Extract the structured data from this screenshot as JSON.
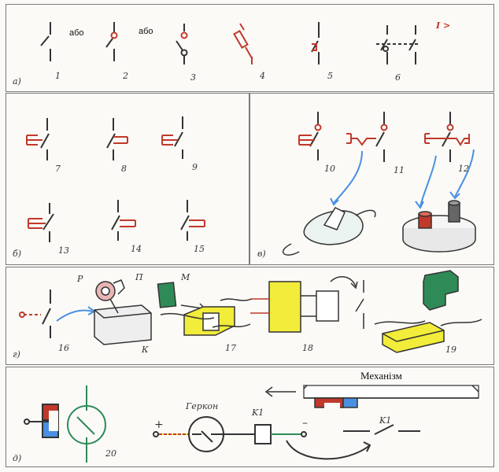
{
  "sections": {
    "a": "а)",
    "b": "б)",
    "v": "в)",
    "g": "г)",
    "d": "д)"
  },
  "or_word": "або",
  "numbers": {
    "n1": "1",
    "n2": "2",
    "n3": "3",
    "n4": "4",
    "n5": "5",
    "n6": "6",
    "n7": "7",
    "n8": "8",
    "n9": "9",
    "n10": "10",
    "n11": "11",
    "n12": "12",
    "n13": "13",
    "n14": "14",
    "n15": "15",
    "n16": "16",
    "n17": "17",
    "n18": "18",
    "n19": "19",
    "n20": "20"
  },
  "overcurrent_symbol": "I >",
  "letters": {
    "P": "P",
    "Pi": "П",
    "K": "К",
    "M": "М"
  },
  "reed": {
    "label": "Геркон",
    "relay": "K1",
    "plus": "+",
    "minus": "–",
    "contact": "K1"
  },
  "mechanism": "Механізм",
  "colors": {
    "red": "#c0392b",
    "yellow": "#f2ec3a",
    "green": "#2e8b57",
    "blue": "#4a90e2",
    "ink": "#333333"
  }
}
